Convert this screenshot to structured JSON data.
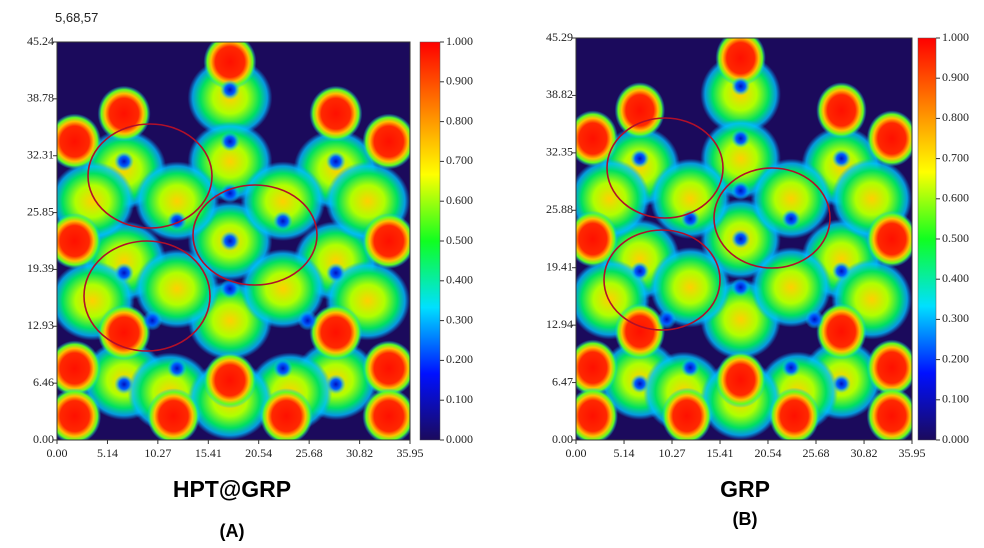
{
  "chart_data": [
    {
      "type": "heatmap",
      "annotation": "5,68,57",
      "title": "HPT@GRP",
      "subtitle": "(A)",
      "xlim": [
        0,
        35.95
      ],
      "xticks": [
        {
          "value": 0,
          "label": "0.00"
        },
        5.14,
        10.27,
        15.41,
        20.54,
        25.68,
        30.82,
        35.95
      ],
      "ylim": [
        0,
        45.24
      ],
      "yticks": [
        {
          "value": 0,
          "label": "0.00"
        },
        6.46,
        12.93,
        19.39,
        25.85,
        32.31,
        38.78,
        45.24
      ],
      "colorbar_lim": [
        0,
        1
      ],
      "colorbar_ticks": [
        {
          "value": 0,
          "label": "0.000"
        },
        {
          "value": 0.1,
          "label": "0.100"
        },
        {
          "value": 0.2,
          "label": "0.200"
        },
        {
          "value": 0.3,
          "label": "0.300"
        },
        {
          "value": 0.4,
          "label": "0.400"
        },
        {
          "value": 0.5,
          "label": "0.500"
        },
        {
          "value": 0.6,
          "label": "0.600"
        },
        {
          "value": 0.7,
          "label": "0.700"
        },
        {
          "value": 0.8,
          "label": "0.800"
        },
        {
          "value": 0.9,
          "label": "0.900"
        },
        {
          "value": 1,
          "label": "1.000"
        }
      ],
      "colormap": [
        "#1b0a5c",
        "#0010ff",
        "#00e0ff",
        "#10ff20",
        "#ffff00",
        "#ff8000",
        "#ff0000"
      ]
    },
    {
      "type": "heatmap",
      "title": "GRP",
      "subtitle": "(B)",
      "xlim": [
        0,
        35.95
      ],
      "xticks": [
        {
          "value": 0,
          "label": "0.00"
        },
        5.14,
        10.27,
        15.41,
        20.54,
        25.68,
        30.82,
        35.95
      ],
      "ylim": [
        0,
        45.29
      ],
      "yticks": [
        {
          "value": 0,
          "label": "0.00"
        },
        6.47,
        12.94,
        19.41,
        25.88,
        32.35,
        38.82,
        45.29
      ],
      "colorbar_lim": [
        0,
        1
      ],
      "colorbar_ticks": [
        {
          "value": 0,
          "label": "0.000"
        },
        {
          "value": 0.1,
          "label": "0.100"
        },
        {
          "value": 0.2,
          "label": "0.200"
        },
        {
          "value": 0.3,
          "label": "0.300"
        },
        {
          "value": 0.4,
          "label": "0.400"
        },
        {
          "value": 0.5,
          "label": "0.500"
        },
        {
          "value": 0.6,
          "label": "0.600"
        },
        {
          "value": 0.7,
          "label": "0.700"
        },
        {
          "value": 0.8,
          "label": "0.800"
        },
        {
          "value": 0.9,
          "label": "0.900"
        },
        {
          "value": 1,
          "label": "1.000"
        }
      ],
      "colormap": [
        "#1b0a5c",
        "#0010ff",
        "#00e0ff",
        "#10ff20",
        "#ffff00",
        "#ff8000",
        "#ff0000"
      ]
    }
  ]
}
